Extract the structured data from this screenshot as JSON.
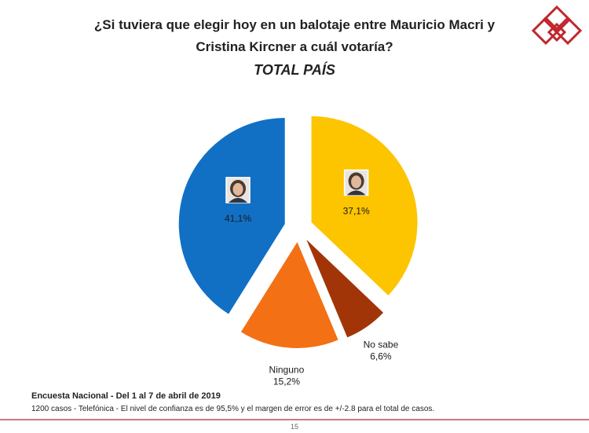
{
  "header": {
    "title_line1": "¿Si tuviera que elegir hoy en un balotaje entre Mauricio Macri y",
    "title_line2": "Cristina Kircner a cuál votaría?",
    "subtitle": "TOTAL PAÍS"
  },
  "chart_data": {
    "type": "pie",
    "exploded": true,
    "slices": [
      {
        "name": "",
        "value": 37.1,
        "label": "37,1%",
        "color": "#fdc400",
        "icon": "candidate-photo-icon"
      },
      {
        "name": "No sabe",
        "value": 6.6,
        "label": "6,6%",
        "color": "#a23508"
      },
      {
        "name": "Ninguno",
        "value": 15.2,
        "label": "15,2%",
        "color": "#f47014"
      },
      {
        "name": "",
        "value": 41.1,
        "label": "41,1%",
        "color": "#1170c4",
        "icon": "candidate-photo-icon"
      }
    ]
  },
  "footer": {
    "source": "Encuesta Nacional - Del 1 al 7 de abril de 2019",
    "note": "1200 casos - Telefónica  - El nivel de confianza es de 95,5% y el margen de error es de +/-2.8 para el total de casos.",
    "page_number": "15"
  },
  "brand": {
    "logo_color": "#c0272d",
    "footer_line_color": "#c97a82"
  }
}
